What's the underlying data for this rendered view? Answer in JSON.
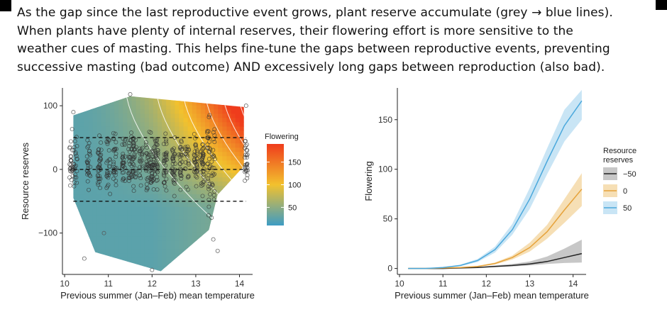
{
  "caption_lines": [
    "As the gap since the last reproductive event grows, plant reserve accumulate (grey → blue lines).",
    "When plants have plenty of internal reserves, their flowering effort is more sensitive to the",
    "weather cues of masting. This helps fine-tune the gaps between reproductive events, preventing",
    "successive masting (bad outcome) AND excessively long gaps between reproduction (also bad)."
  ],
  "colors": {
    "low": "#3d9cc4",
    "mid": "#f2c12e",
    "high": "#ef3c1c",
    "reserve_neg50": "#222222",
    "reserve_0": "#e6a23a",
    "reserve_50": "#4aa8dc",
    "band_neg50": "#bdbdbd",
    "band_0": "#f5d9a8",
    "band_50": "#bfe0f3"
  },
  "chart_data": [
    {
      "type": "heatmap",
      "xlabel": "Previous summer (Jan–Feb) mean temperature",
      "ylabel": "Resource reserves",
      "xlim": [
        9.95,
        14.3
      ],
      "ylim": [
        -165,
        128
      ],
      "xticks": [
        10,
        11,
        12,
        13,
        14
      ],
      "yticks": [
        100,
        0,
        -100
      ],
      "ytick_labels": [
        "100",
        "0",
        "−100"
      ],
      "colorbar": {
        "title": "Flowering",
        "ticks": [
          150,
          100,
          50
        ],
        "range": [
          10,
          190
        ]
      },
      "dashed_lines_y": [
        50,
        0,
        -50
      ],
      "grid": false,
      "legend_position": "right"
    },
    {
      "type": "line",
      "xlabel": "Previous summer (Jan–Feb) mean temperature",
      "ylabel": "Flowering",
      "xlim": [
        9.95,
        14.3
      ],
      "ylim": [
        -6,
        182
      ],
      "xticks": [
        10,
        11,
        12,
        13,
        14
      ],
      "yticks": [
        0,
        50,
        100,
        150
      ],
      "legend": {
        "title_lines": [
          "Resource",
          "reserves"
        ],
        "position": "right"
      },
      "x": [
        10.2,
        10.6,
        11.0,
        11.4,
        11.8,
        12.2,
        12.6,
        13.0,
        13.4,
        13.8,
        14.2
      ],
      "series": [
        {
          "name": "−50",
          "values": [
            0,
            0,
            0,
            0.5,
            1,
            2,
            3,
            4.5,
            7,
            11,
            15
          ],
          "lower": [
            0,
            0,
            0,
            0.3,
            0.6,
            1.3,
            2,
            3,
            4.5,
            5.5,
            6
          ],
          "upper": [
            0,
            0,
            0.3,
            0.7,
            1.4,
            3,
            4.5,
            7,
            12,
            20,
            29
          ]
        },
        {
          "name": "0",
          "values": [
            0,
            0,
            0.5,
            1,
            2,
            5,
            11,
            21,
            37,
            59,
            80
          ],
          "lower": [
            0,
            0,
            0.3,
            0.7,
            1.5,
            4,
            9,
            17,
            30,
            46,
            63
          ],
          "upper": [
            0,
            0,
            0.7,
            1.3,
            2.5,
            6,
            13,
            26,
            44,
            70,
            96
          ]
        },
        {
          "name": "50",
          "values": [
            0,
            0,
            1,
            3,
            8,
            19,
            39,
            70,
            108,
            144,
            169
          ],
          "lower": [
            0,
            0,
            0.7,
            2.2,
            6.5,
            16,
            34,
            60,
            95,
            128,
            150
          ],
          "upper": [
            0,
            0,
            1.3,
            3.8,
            9.5,
            22,
            45,
            81,
            121,
            160,
            180
          ]
        }
      ]
    }
  ]
}
